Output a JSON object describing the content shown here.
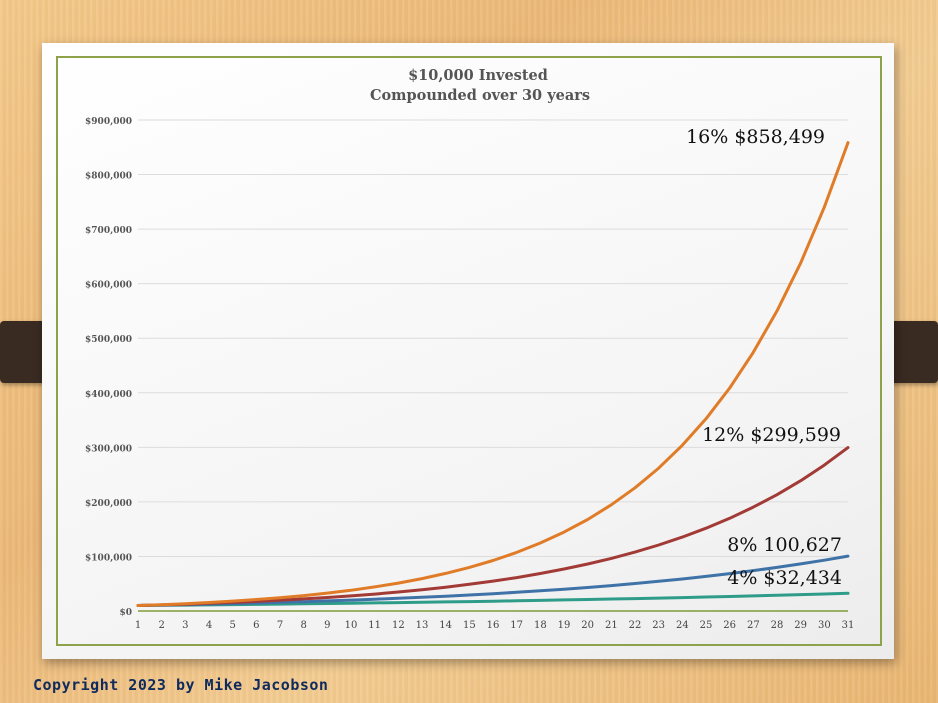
{
  "chart_data": {
    "type": "line",
    "title": "$10,000 Invested",
    "subtitle": "Compounded over 30 years",
    "xlabel": "",
    "ylabel": "",
    "ylim": [
      0,
      900000
    ],
    "y_ticks": [
      0,
      100000,
      200000,
      300000,
      400000,
      500000,
      600000,
      700000,
      800000,
      900000
    ],
    "y_tick_labels": [
      "$0",
      "$100,000",
      "$200,000",
      "$300,000",
      "$400,000",
      "$500,000",
      "$600,000",
      "$700,000",
      "$800,000",
      "$900,000"
    ],
    "categories": [
      1,
      2,
      3,
      4,
      5,
      6,
      7,
      8,
      9,
      10,
      11,
      12,
      13,
      14,
      15,
      16,
      17,
      18,
      19,
      20,
      21,
      22,
      23,
      24,
      25,
      26,
      27,
      28,
      29,
      30,
      31
    ],
    "grid": "horizontal",
    "legend": "none",
    "series": [
      {
        "key": "r16",
        "color": "#e07b27",
        "values": [
          10000,
          11600,
          13456,
          15609,
          18106,
          21003,
          24364,
          28262,
          32784,
          38030,
          44114,
          51173,
          59360,
          68858,
          79875,
          92655,
          107480,
          124677,
          144625,
          167765,
          194608,
          225745,
          261864,
          303762,
          352364,
          408742,
          474141,
          550004,
          638004,
          740085,
          858499
        ]
      },
      {
        "key": "r12",
        "color": "#a23a36",
        "values": [
          10000,
          11200,
          12544,
          14049,
          15735,
          17623,
          19738,
          22107,
          24760,
          27731,
          31058,
          34785,
          38960,
          43635,
          48871,
          54736,
          61304,
          68660,
          76900,
          86128,
          96463,
          108038,
          121003,
          135523,
          151786,
          170001,
          190401,
          213249,
          238839,
          267499,
          299599
        ]
      },
      {
        "key": "r8",
        "color": "#3f73a8",
        "values": [
          10000,
          10800,
          11664,
          12597,
          13605,
          14693,
          15869,
          17138,
          18509,
          19990,
          21589,
          23316,
          25182,
          27196,
          29372,
          31722,
          34259,
          37000,
          39960,
          43157,
          46610,
          50338,
          54365,
          58715,
          63412,
          68485,
          73964,
          79881,
          86271,
          93173,
          100627
        ]
      },
      {
        "key": "r4",
        "color": "#2f9c8a",
        "values": [
          10000,
          10400,
          10816,
          11249,
          11699,
          12167,
          12653,
          13159,
          13686,
          14233,
          14802,
          15395,
          16010,
          16651,
          17317,
          18009,
          18730,
          19479,
          20258,
          21068,
          21911,
          22788,
          23699,
          24647,
          25633,
          26658,
          27725,
          28834,
          29987,
          31187,
          32434
        ]
      }
    ],
    "annotations": [
      {
        "series": "r16",
        "text": "16% $858,499"
      },
      {
        "series": "r12",
        "text": "12% $299,599"
      },
      {
        "series": "r8",
        "text": "8% 100,627"
      },
      {
        "series": "r4",
        "text": "4% $32,434"
      }
    ]
  },
  "footer": {
    "copyright": "Copyright 2023 by Mike Jacobson"
  }
}
